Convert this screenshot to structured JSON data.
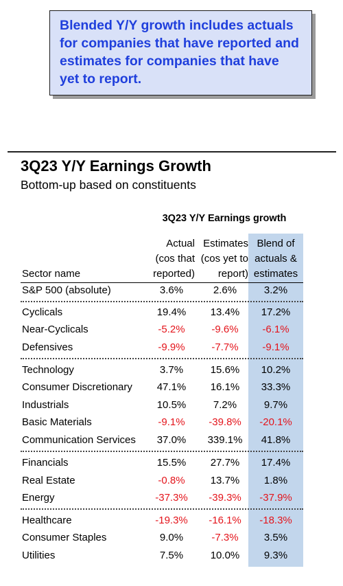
{
  "note": {
    "lines": [
      "Blended Y/Y growth includes actuals",
      "for companies that have reported and",
      "estimates for companies that have",
      "yet to report."
    ]
  },
  "title": "3Q23 Y/Y Earnings Growth",
  "subtitle": "Bottom-up based on constituents",
  "table": {
    "group_header": "3Q23 Y/Y Earnings growth",
    "headers": {
      "sector": "Sector name",
      "actual": [
        "Actual",
        "(cos that",
        "reported)"
      ],
      "estimates": [
        "Estimates",
        "(cos yet to",
        "report)"
      ],
      "blend": [
        "Blend of",
        "actuals &",
        "estimates"
      ]
    },
    "rows": [
      {
        "name": "S&P 500 (absolute)",
        "actual": "3.6%",
        "estimates": "2.6%",
        "blend": "3.2%"
      },
      {
        "name": "Cyclicals",
        "actual": "19.4%",
        "estimates": "13.4%",
        "blend": "17.2%"
      },
      {
        "name": "Near-Cyclicals",
        "actual": "-5.2%",
        "estimates": "-9.6%",
        "blend": "-6.1%"
      },
      {
        "name": "Defensives",
        "actual": "-9.9%",
        "estimates": "-7.7%",
        "blend": "-9.1%"
      },
      {
        "name": "Technology",
        "actual": "3.7%",
        "estimates": "15.6%",
        "blend": "10.2%"
      },
      {
        "name": "Consumer Discretionary",
        "actual": "47.1%",
        "estimates": "16.1%",
        "blend": "33.3%"
      },
      {
        "name": "Industrials",
        "actual": "10.5%",
        "estimates": "7.2%",
        "blend": "9.7%"
      },
      {
        "name": "Basic Materials",
        "actual": "-9.1%",
        "estimates": "-39.8%",
        "blend": "-20.1%"
      },
      {
        "name": "Communication Services",
        "actual": "37.0%",
        "estimates": "339.1%",
        "blend": "41.8%"
      },
      {
        "name": "Financials",
        "actual": "15.5%",
        "estimates": "27.7%",
        "blend": "17.4%"
      },
      {
        "name": "Real Estate",
        "actual": "-0.8%",
        "estimates": "13.7%",
        "blend": "1.8%"
      },
      {
        "name": "Energy",
        "actual": "-37.3%",
        "estimates": "-39.3%",
        "blend": "-37.9%"
      },
      {
        "name": "Healthcare",
        "actual": "-19.3%",
        "estimates": "-16.1%",
        "blend": "-18.3%"
      },
      {
        "name": "Consumer Staples",
        "actual": "9.0%",
        "estimates": "-7.3%",
        "blend": "3.5%"
      },
      {
        "name": "Utilities",
        "actual": "7.5%",
        "estimates": "10.0%",
        "blend": "9.3%"
      }
    ],
    "colors": {
      "negative": "#e4141b",
      "blend_highlight": "#c2d6ec",
      "note_text": "#1f3fdc",
      "note_bg": "#d9e1f8"
    }
  }
}
